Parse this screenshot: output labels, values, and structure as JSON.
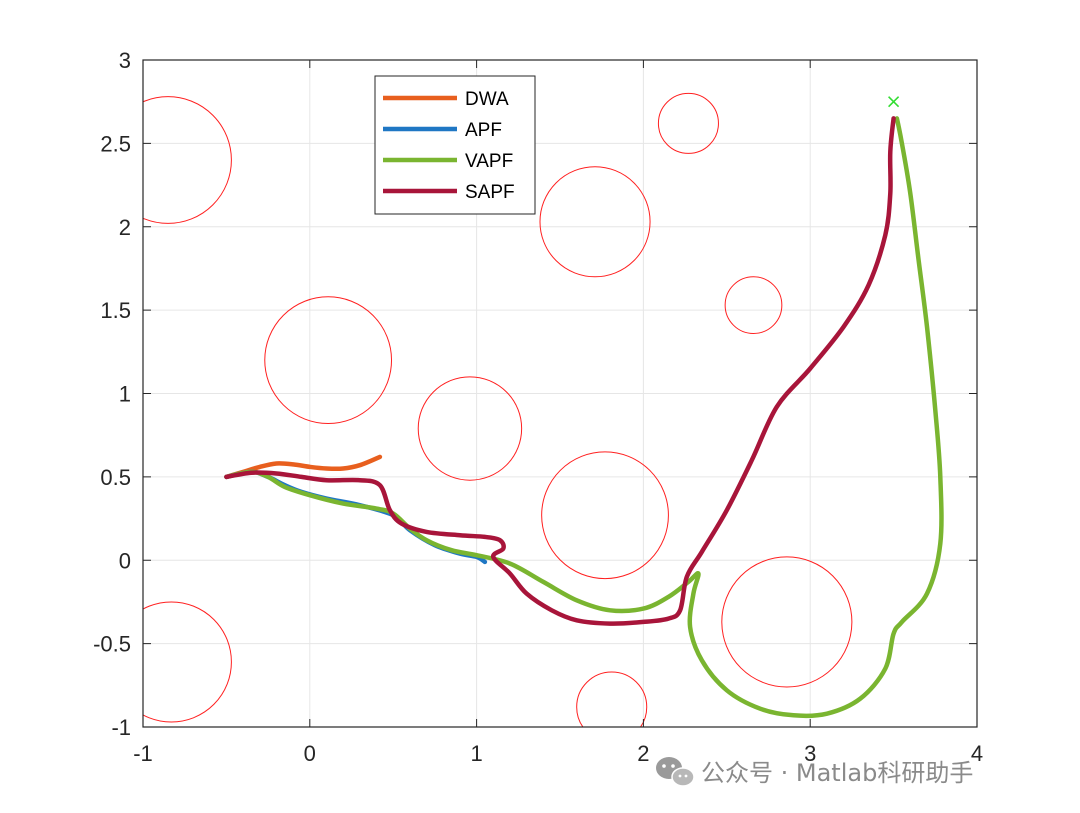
{
  "chart_data": {
    "type": "line",
    "xlim": [
      -1,
      4
    ],
    "ylim": [
      -1,
      3
    ],
    "x_ticks": [
      "-1",
      "0",
      "1",
      "2",
      "3",
      "4"
    ],
    "y_ticks": [
      "-1",
      "-0.5",
      "0",
      "0.5",
      "1",
      "1.5",
      "2",
      "2.5",
      "3"
    ],
    "grid": true,
    "legend_position": "top-left (inside)",
    "goal": {
      "marker": "x",
      "color": "#33dd33",
      "point": [
        3.5,
        2.75
      ]
    },
    "obstacles": {
      "color": "#ff2020",
      "circles": [
        {
          "cx": -0.85,
          "cy": 2.4,
          "r": 0.38
        },
        {
          "cx": 2.27,
          "cy": 2.62,
          "r": 0.18
        },
        {
          "cx": 1.71,
          "cy": 2.03,
          "r": 0.33
        },
        {
          "cx": 2.66,
          "cy": 1.53,
          "r": 0.17
        },
        {
          "cx": 0.11,
          "cy": 1.2,
          "r": 0.38
        },
        {
          "cx": 0.96,
          "cy": 0.79,
          "r": 0.31
        },
        {
          "cx": 1.77,
          "cy": 0.27,
          "r": 0.38
        },
        {
          "cx": 2.86,
          "cy": -0.37,
          "r": 0.39
        },
        {
          "cx": -0.83,
          "cy": -0.61,
          "r": 0.36
        },
        {
          "cx": 1.81,
          "cy": -0.88,
          "r": 0.21
        }
      ]
    },
    "series": [
      {
        "name": "DWA",
        "color": "#e85f1e",
        "points": [
          [
            -0.5,
            0.5
          ],
          [
            -0.4,
            0.53
          ],
          [
            -0.3,
            0.56
          ],
          [
            -0.2,
            0.58
          ],
          [
            -0.1,
            0.575
          ],
          [
            0.0,
            0.56
          ],
          [
            0.1,
            0.55
          ],
          [
            0.2,
            0.55
          ],
          [
            0.3,
            0.57
          ],
          [
            0.42,
            0.62
          ]
        ]
      },
      {
        "name": "APF",
        "color": "#1f77c4",
        "points": [
          [
            -0.5,
            0.5
          ],
          [
            -0.35,
            0.53
          ],
          [
            -0.25,
            0.5
          ],
          [
            -0.15,
            0.45
          ],
          [
            -0.05,
            0.41
          ],
          [
            0.1,
            0.37
          ],
          [
            0.3,
            0.33
          ],
          [
            0.5,
            0.27
          ],
          [
            0.6,
            0.18
          ],
          [
            0.75,
            0.09
          ],
          [
            0.9,
            0.04
          ],
          [
            1.0,
            0.02
          ],
          [
            1.05,
            -0.01
          ]
        ]
      },
      {
        "name": "VAPF",
        "color": "#7ab530",
        "points": [
          [
            -0.5,
            0.5
          ],
          [
            -0.35,
            0.53
          ],
          [
            -0.25,
            0.5
          ],
          [
            -0.15,
            0.44
          ],
          [
            0.0,
            0.39
          ],
          [
            0.2,
            0.34
          ],
          [
            0.4,
            0.31
          ],
          [
            0.5,
            0.28
          ],
          [
            0.6,
            0.19
          ],
          [
            0.7,
            0.12
          ],
          [
            0.85,
            0.06
          ],
          [
            1.0,
            0.03
          ],
          [
            1.2,
            -0.02
          ],
          [
            1.4,
            -0.13
          ],
          [
            1.6,
            -0.24
          ],
          [
            1.8,
            -0.3
          ],
          [
            2.0,
            -0.29
          ],
          [
            2.15,
            -0.22
          ],
          [
            2.27,
            -0.13
          ],
          [
            2.33,
            -0.08
          ],
          [
            2.3,
            -0.2
          ],
          [
            2.28,
            -0.4
          ],
          [
            2.35,
            -0.6
          ],
          [
            2.5,
            -0.78
          ],
          [
            2.7,
            -0.89
          ],
          [
            2.9,
            -0.93
          ],
          [
            3.1,
            -0.92
          ],
          [
            3.3,
            -0.83
          ],
          [
            3.45,
            -0.65
          ],
          [
            3.5,
            -0.44
          ],
          [
            3.55,
            -0.37
          ],
          [
            3.7,
            -0.2
          ],
          [
            3.78,
            0.1
          ],
          [
            3.78,
            0.5
          ],
          [
            3.75,
            0.9
          ],
          [
            3.7,
            1.4
          ],
          [
            3.65,
            1.8
          ],
          [
            3.6,
            2.2
          ],
          [
            3.55,
            2.5
          ],
          [
            3.52,
            2.65
          ]
        ]
      },
      {
        "name": "SAPF",
        "color": "#a8153a",
        "points": [
          [
            -0.5,
            0.5
          ],
          [
            -0.35,
            0.525
          ],
          [
            -0.2,
            0.52
          ],
          [
            -0.05,
            0.5
          ],
          [
            0.1,
            0.48
          ],
          [
            0.3,
            0.48
          ],
          [
            0.42,
            0.45
          ],
          [
            0.48,
            0.3
          ],
          [
            0.55,
            0.22
          ],
          [
            0.7,
            0.17
          ],
          [
            0.9,
            0.15
          ],
          [
            1.05,
            0.14
          ],
          [
            1.14,
            0.12
          ],
          [
            1.16,
            0.07
          ],
          [
            1.1,
            0.02
          ],
          [
            1.2,
            -0.08
          ],
          [
            1.3,
            -0.2
          ],
          [
            1.45,
            -0.3
          ],
          [
            1.6,
            -0.36
          ],
          [
            1.8,
            -0.38
          ],
          [
            2.0,
            -0.37
          ],
          [
            2.15,
            -0.35
          ],
          [
            2.22,
            -0.3
          ],
          [
            2.26,
            -0.1
          ],
          [
            2.35,
            0.05
          ],
          [
            2.5,
            0.3
          ],
          [
            2.65,
            0.6
          ],
          [
            2.8,
            0.92
          ],
          [
            3.0,
            1.15
          ],
          [
            3.2,
            1.4
          ],
          [
            3.35,
            1.65
          ],
          [
            3.45,
            1.95
          ],
          [
            3.48,
            2.2
          ],
          [
            3.48,
            2.45
          ],
          [
            3.5,
            2.65
          ]
        ]
      }
    ]
  },
  "watermark": {
    "icon": "wechat-icon",
    "text": "公众号 · Matlab科研助手"
  }
}
